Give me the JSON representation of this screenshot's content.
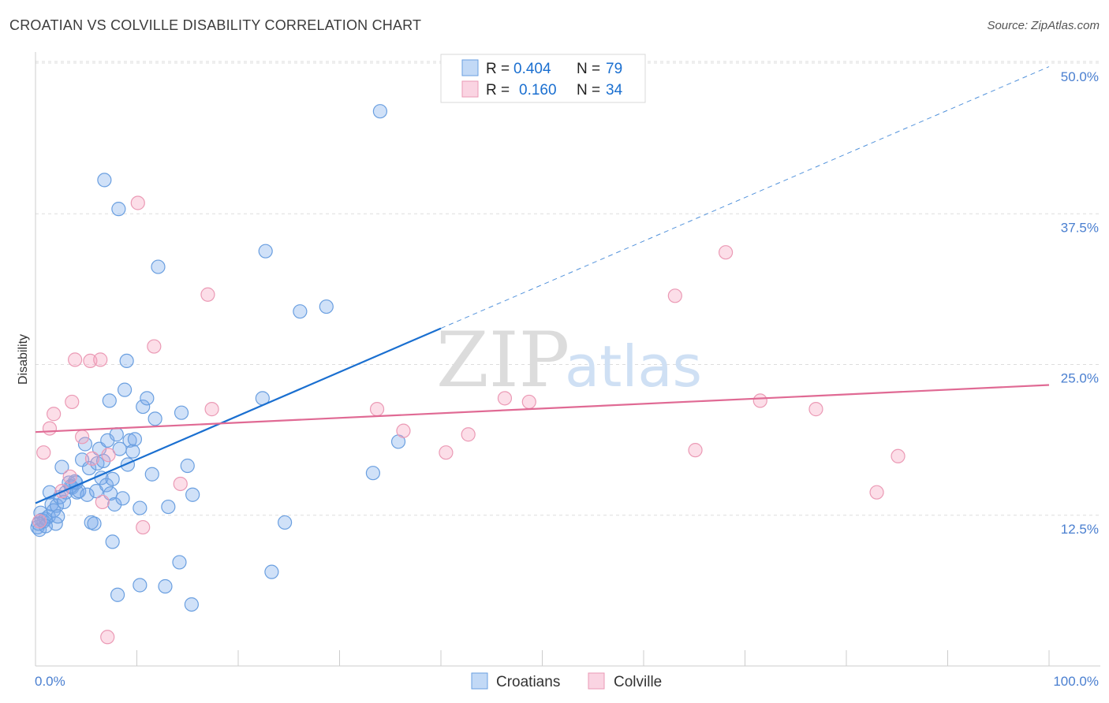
{
  "title": "CROATIAN VS COLVILLE DISABILITY CORRELATION CHART",
  "source": "Source: ZipAtlas.com",
  "watermark": {
    "part1": "ZIP",
    "part2": "atlas"
  },
  "colors": {
    "blue": "#1a6fd0",
    "blue_fill": "rgba(120,170,235,0.35)",
    "blue_stroke": "#6a9fe0",
    "pink": "#e06a94",
    "pink_fill": "rgba(245,160,190,0.35)",
    "pink_stroke": "#eb9ab5",
    "grid": "#dddddd",
    "tick_text": "#4a7fd0"
  },
  "chart_data": {
    "type": "scatter",
    "xlabel": "",
    "ylabel": "Disability",
    "xlim": [
      0,
      100
    ],
    "ylim": [
      0,
      50
    ],
    "x_tick_labels": [
      {
        "value": 0,
        "label": "0.0%"
      },
      {
        "value": 100,
        "label": "100.0%"
      }
    ],
    "y_ticks": [
      {
        "value": 12.5,
        "label": "12.5%"
      },
      {
        "value": 25,
        "label": "25.0%"
      },
      {
        "value": 37.5,
        "label": "37.5%"
      },
      {
        "value": 50,
        "label": "50.0%"
      }
    ],
    "grid": true,
    "legend_position": "top-center",
    "legend": [
      {
        "r_label": "R =",
        "r_value": "0.404",
        "n_label": "N =",
        "n_value": "79"
      },
      {
        "r_label": "R =",
        "r_value": "0.160",
        "n_label": "N =",
        "n_value": "34"
      }
    ],
    "bottom_legend": [
      "Croatians",
      "Colville"
    ],
    "series": [
      {
        "name": "Croatians",
        "color": "#1a6fd0",
        "trend": {
          "x0": 0,
          "y0": 13.5,
          "x1": 40,
          "y1": 28.0,
          "dashed_to_x": 100,
          "dashed_to_y": 49.7
        },
        "points": [
          [
            0.2,
            11.5
          ],
          [
            0.4,
            11.3
          ],
          [
            0.6,
            12.1
          ],
          [
            0.8,
            12.0
          ],
          [
            1.0,
            12.2
          ],
          [
            0.5,
            12.7
          ],
          [
            1.3,
            12.4
          ],
          [
            1.6,
            13.4
          ],
          [
            1.8,
            12.9
          ],
          [
            2.0,
            11.8
          ],
          [
            2.1,
            13.3
          ],
          [
            2.4,
            14.0
          ],
          [
            2.6,
            16.5
          ],
          [
            2.8,
            13.6
          ],
          [
            3.0,
            14.4
          ],
          [
            1.4,
            14.4
          ],
          [
            3.3,
            15.2
          ],
          [
            3.6,
            14.8
          ],
          [
            3.9,
            15.3
          ],
          [
            4.1,
            14.4
          ],
          [
            4.3,
            14.5
          ],
          [
            4.6,
            17.1
          ],
          [
            4.9,
            18.4
          ],
          [
            5.1,
            14.2
          ],
          [
            5.3,
            16.4
          ],
          [
            5.5,
            11.9
          ],
          [
            5.8,
            11.8
          ],
          [
            6.0,
            14.5
          ],
          [
            6.1,
            16.8
          ],
          [
            6.3,
            18.0
          ],
          [
            6.5,
            15.6
          ],
          [
            6.7,
            17.0
          ],
          [
            7.0,
            15.0
          ],
          [
            7.1,
            18.7
          ],
          [
            7.3,
            22.0
          ],
          [
            7.4,
            14.3
          ],
          [
            7.6,
            15.5
          ],
          [
            7.8,
            13.4
          ],
          [
            8.0,
            19.2
          ],
          [
            8.3,
            18.0
          ],
          [
            8.6,
            13.9
          ],
          [
            8.8,
            22.9
          ],
          [
            9.0,
            25.3
          ],
          [
            9.1,
            16.7
          ],
          [
            9.3,
            18.7
          ],
          [
            9.6,
            17.8
          ],
          [
            9.8,
            18.8
          ],
          [
            10.3,
            13.1
          ],
          [
            10.6,
            21.5
          ],
          [
            11.0,
            22.2
          ],
          [
            11.5,
            15.9
          ],
          [
            11.8,
            20.5
          ],
          [
            12.1,
            33.1
          ],
          [
            13.1,
            13.2
          ],
          [
            14.4,
            21.0
          ],
          [
            15.0,
            16.6
          ],
          [
            15.5,
            14.2
          ],
          [
            6.8,
            40.3
          ],
          [
            8.2,
            37.9
          ],
          [
            34.0,
            46.0
          ],
          [
            22.7,
            34.4
          ],
          [
            26.1,
            29.4
          ],
          [
            28.7,
            29.8
          ],
          [
            22.4,
            22.2
          ],
          [
            7.6,
            10.3
          ],
          [
            14.2,
            8.6
          ],
          [
            12.8,
            6.6
          ],
          [
            10.3,
            6.7
          ],
          [
            8.1,
            5.9
          ],
          [
            15.4,
            5.1
          ],
          [
            24.6,
            11.9
          ],
          [
            23.3,
            7.8
          ],
          [
            33.3,
            16.0
          ],
          [
            35.8,
            18.6
          ],
          [
            1.0,
            11.6
          ],
          [
            0.3,
            11.8
          ],
          [
            2.2,
            12.4
          ],
          [
            3.5,
            14.9
          ],
          [
            4.0,
            15.2
          ]
        ]
      },
      {
        "name": "Colville",
        "color": "#e06a94",
        "trend": {
          "x0": 0,
          "y0": 19.4,
          "x1": 100,
          "y1": 23.3
        },
        "points": [
          [
            0.4,
            12.0
          ],
          [
            0.8,
            17.7
          ],
          [
            1.4,
            19.7
          ],
          [
            1.8,
            20.9
          ],
          [
            3.4,
            15.7
          ],
          [
            3.6,
            21.9
          ],
          [
            3.9,
            25.4
          ],
          [
            4.6,
            19.0
          ],
          [
            5.4,
            25.3
          ],
          [
            5.6,
            17.2
          ],
          [
            6.4,
            25.4
          ],
          [
            6.6,
            13.6
          ],
          [
            7.2,
            17.5
          ],
          [
            10.1,
            38.4
          ],
          [
            10.6,
            11.5
          ],
          [
            11.7,
            26.5
          ],
          [
            14.3,
            15.1
          ],
          [
            17.0,
            30.8
          ],
          [
            17.4,
            21.3
          ],
          [
            2.6,
            14.5
          ],
          [
            7.1,
            2.4
          ],
          [
            33.7,
            21.3
          ],
          [
            36.3,
            19.5
          ],
          [
            40.5,
            17.7
          ],
          [
            42.7,
            19.2
          ],
          [
            46.3,
            22.2
          ],
          [
            48.7,
            21.9
          ],
          [
            63.1,
            30.7
          ],
          [
            65.1,
            17.9
          ],
          [
            68.1,
            34.3
          ],
          [
            71.5,
            22.0
          ],
          [
            77.0,
            21.3
          ],
          [
            83.0,
            14.4
          ],
          [
            85.1,
            17.4
          ]
        ]
      }
    ]
  }
}
